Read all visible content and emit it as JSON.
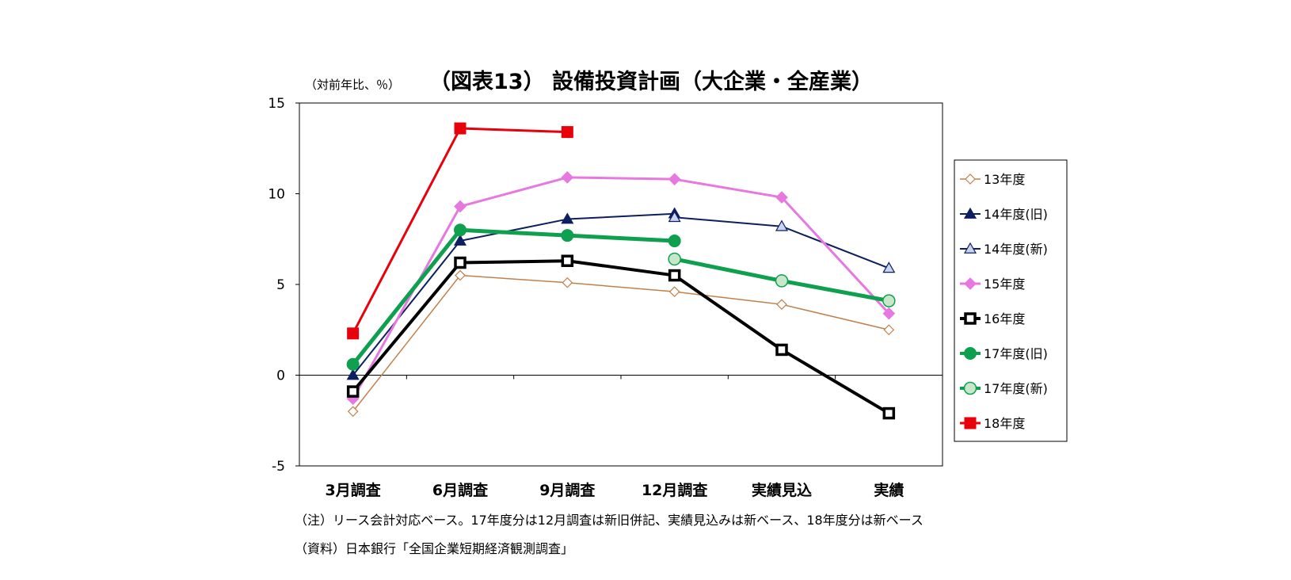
{
  "chart_data": {
    "type": "line",
    "title": "（図表13） 設備投資計画（大企業・全産業）",
    "ylabel": "（対前年比、％）",
    "ylim": [
      -5,
      15
    ],
    "yticks": [
      -5,
      0,
      5,
      10,
      15
    ],
    "categories": [
      "3月調査",
      "6月調査",
      "9月調査",
      "12月調査",
      "実績見込",
      "実績"
    ],
    "series": [
      {
        "name": "13年度",
        "color": "#C0804A",
        "marker": "diamond-open",
        "width": 1.5,
        "values": [
          -2.0,
          5.5,
          5.1,
          4.6,
          3.9,
          2.5
        ]
      },
      {
        "name": "14年度(旧)",
        "color": "#0D1F5E",
        "marker": "triangle-filled",
        "width": 2,
        "values": [
          0.0,
          7.4,
          8.6,
          8.9,
          null,
          null
        ]
      },
      {
        "name": "14年度(新)",
        "color": "#0D1F5E",
        "marker": "triangle-open",
        "width": 2,
        "values": [
          null,
          null,
          null,
          8.7,
          8.2,
          5.9
        ]
      },
      {
        "name": "15年度",
        "color": "#E678E0",
        "marker": "diamond-filled",
        "width": 3,
        "values": [
          -1.3,
          9.3,
          10.9,
          10.8,
          9.8,
          3.4
        ]
      },
      {
        "name": "16年度",
        "color": "#000000",
        "marker": "square-open",
        "width": 4,
        "values": [
          -0.9,
          6.2,
          6.3,
          5.5,
          1.4,
          -2.1
        ]
      },
      {
        "name": "17年度(旧)",
        "color": "#0EA04E",
        "marker": "circle-filled",
        "width": 5,
        "values": [
          0.6,
          8.0,
          7.7,
          7.4,
          null,
          null
        ]
      },
      {
        "name": "17年度(新)",
        "color": "#0EA04E",
        "marker": "circle-open",
        "width": 5,
        "values": [
          null,
          null,
          null,
          6.4,
          5.2,
          4.1
        ]
      },
      {
        "name": "18年度",
        "color": "#E8000B",
        "marker": "square-filled",
        "width": 3,
        "values": [
          2.3,
          13.6,
          13.4,
          null,
          null,
          null
        ]
      }
    ],
    "legend": "right",
    "grid": false
  },
  "notes": {
    "note1": "（注）リース会計対応ベース。17年度分は12月調査は新旧併記、実績見込みは新ベース、18年度分は新ベース",
    "source": "（資料）日本銀行「全国企業短期経済観測調査」"
  }
}
